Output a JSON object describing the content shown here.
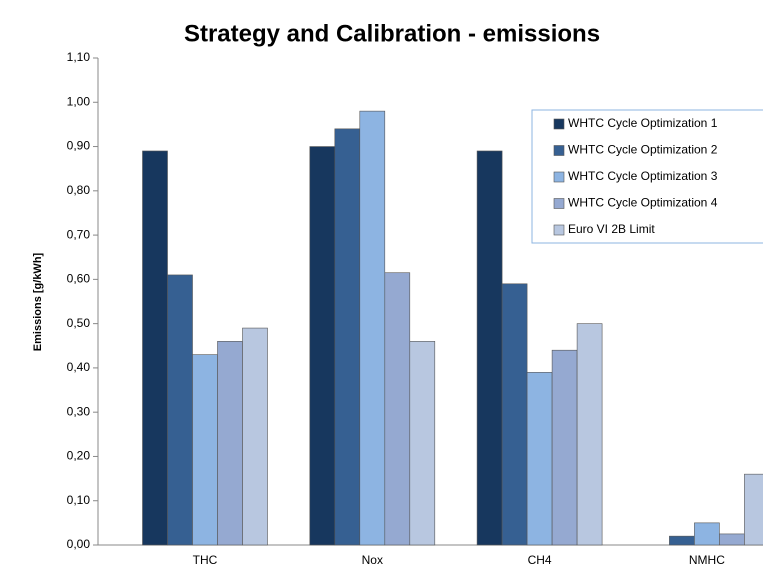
{
  "chart_data": {
    "type": "bar",
    "title": "Strategy and Calibration - emissions",
    "y_label": "Emissions [g/kWh]",
    "categories": [
      "THC",
      "Nox",
      "CH4",
      "NMHC"
    ],
    "series": [
      {
        "name": "WHTC Cycle Optimization 1",
        "color": "#17375e",
        "values": [
          0.89,
          0.9,
          0.89,
          0
        ]
      },
      {
        "name": "WHTC Cycle Optimization 2",
        "color": "#366092",
        "values": [
          0.61,
          0.94,
          0.59,
          0.02
        ]
      },
      {
        "name": "WHTC Cycle Optimization 3",
        "color": "#8db4e2",
        "values": [
          0.43,
          0.98,
          0.39,
          0.05
        ]
      },
      {
        "name": "WHTC Cycle Optimization 4",
        "color": "#95a9d1",
        "values": [
          0.46,
          0.615,
          0.44,
          0.025
        ]
      },
      {
        "name": "Euro VI 2B Limit",
        "color": "#b8c7e0",
        "values": [
          0.49,
          0.46,
          0.5,
          0.16
        ]
      }
    ],
    "ylim": [
      0,
      1.1
    ],
    "yticks": [
      {
        "value": 0,
        "label": "0,00"
      },
      {
        "value": 0.1,
        "label": "0,10"
      },
      {
        "value": 0.2,
        "label": "0,20"
      },
      {
        "value": 0.3,
        "label": "0,30"
      },
      {
        "value": 0.4,
        "label": "0,40"
      },
      {
        "value": 0.5,
        "label": "0,50"
      },
      {
        "value": 0.6,
        "label": "0,60"
      },
      {
        "value": 0.7,
        "label": "0,70"
      },
      {
        "value": 0.8,
        "label": "0,80"
      },
      {
        "value": 0.9,
        "label": "0,90"
      },
      {
        "value": 1.0,
        "label": "1,00"
      },
      {
        "value": 1.1,
        "label": "1,10"
      }
    ],
    "grid": false,
    "legend": "upper-right"
  }
}
